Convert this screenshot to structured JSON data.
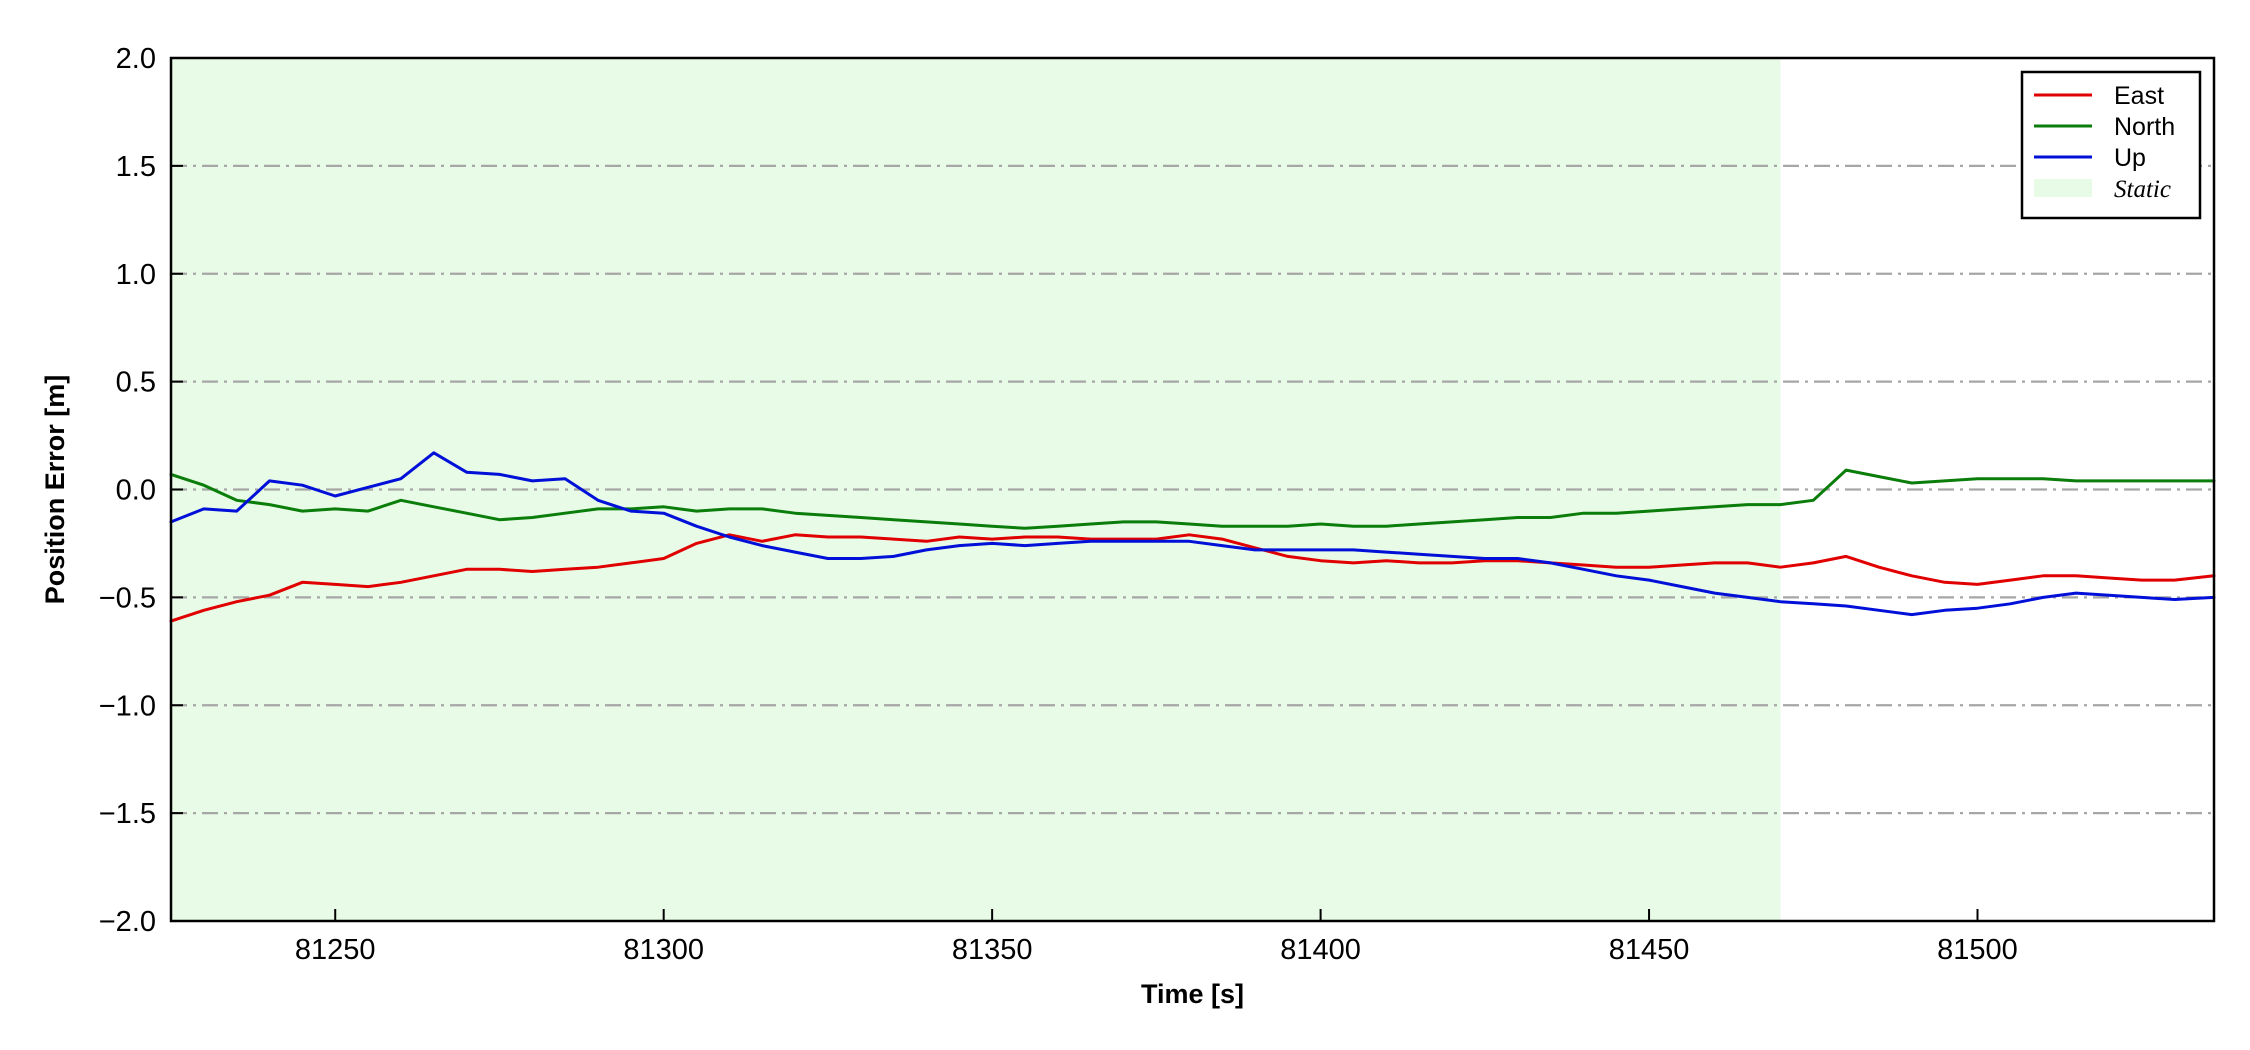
{
  "chart_data": {
    "type": "line",
    "title": "",
    "xlabel": "Time [s]",
    "ylabel": "Position Error [m]",
    "xlim": [
      81225,
      81536
    ],
    "ylim": [
      -2.0,
      2.0
    ],
    "x_ticks": [
      81250,
      81300,
      81350,
      81400,
      81450,
      81500
    ],
    "x_tick_labels": [
      "81250",
      "81300",
      "81350",
      "81400",
      "81450",
      "81500"
    ],
    "y_ticks": [
      -2.0,
      -1.5,
      -1.0,
      -0.5,
      0.0,
      0.5,
      1.0,
      1.5,
      2.0
    ],
    "y_tick_labels": [
      "−2.0",
      "−1.5",
      "−1.0",
      "−0.5",
      "0.0",
      "0.5",
      "1.0",
      "1.5",
      "2.0"
    ],
    "grid": "horizontal dash-dot",
    "legend_position": "top-right",
    "static_region": {
      "label": "Static",
      "x_start": 81225,
      "x_end": 81470,
      "color": "#e8fbe6"
    },
    "x": [
      81225,
      81230,
      81235,
      81240,
      81245,
      81250,
      81255,
      81260,
      81265,
      81270,
      81275,
      81280,
      81285,
      81290,
      81295,
      81300,
      81305,
      81310,
      81315,
      81320,
      81325,
      81330,
      81335,
      81340,
      81345,
      81350,
      81355,
      81360,
      81365,
      81370,
      81375,
      81380,
      81385,
      81390,
      81395,
      81400,
      81405,
      81410,
      81415,
      81420,
      81425,
      81430,
      81435,
      81440,
      81445,
      81450,
      81455,
      81460,
      81465,
      81470,
      81475,
      81480,
      81485,
      81490,
      81495,
      81500,
      81505,
      81510,
      81515,
      81520,
      81525,
      81530,
      81536
    ],
    "series": [
      {
        "name": "East",
        "color": "#e00000",
        "values": [
          -0.61,
          -0.56,
          -0.52,
          -0.49,
          -0.43,
          -0.44,
          -0.45,
          -0.43,
          -0.4,
          -0.37,
          -0.37,
          -0.38,
          -0.37,
          -0.36,
          -0.34,
          -0.32,
          -0.25,
          -0.21,
          -0.24,
          -0.21,
          -0.22,
          -0.22,
          -0.23,
          -0.24,
          -0.22,
          -0.23,
          -0.22,
          -0.22,
          -0.23,
          -0.23,
          -0.23,
          -0.21,
          -0.23,
          -0.27,
          -0.31,
          -0.33,
          -0.34,
          -0.33,
          -0.34,
          -0.34,
          -0.33,
          -0.33,
          -0.34,
          -0.35,
          -0.36,
          -0.36,
          -0.35,
          -0.34,
          -0.34,
          -0.36,
          -0.34,
          -0.31,
          -0.36,
          -0.4,
          -0.43,
          -0.44,
          -0.42,
          -0.4,
          -0.4,
          -0.41,
          -0.42,
          -0.42,
          -0.4
        ]
      },
      {
        "name": "North",
        "color": "#0a7d0a",
        "values": [
          0.07,
          0.02,
          -0.05,
          -0.07,
          -0.1,
          -0.09,
          -0.1,
          -0.05,
          -0.08,
          -0.11,
          -0.14,
          -0.13,
          -0.11,
          -0.09,
          -0.09,
          -0.08,
          -0.1,
          -0.09,
          -0.09,
          -0.11,
          -0.12,
          -0.13,
          -0.14,
          -0.15,
          -0.16,
          -0.17,
          -0.18,
          -0.17,
          -0.16,
          -0.15,
          -0.15,
          -0.16,
          -0.17,
          -0.17,
          -0.17,
          -0.16,
          -0.17,
          -0.17,
          -0.16,
          -0.15,
          -0.14,
          -0.13,
          -0.13,
          -0.11,
          -0.11,
          -0.1,
          -0.09,
          -0.08,
          -0.07,
          -0.07,
          -0.05,
          0.09,
          0.06,
          0.03,
          0.04,
          0.05,
          0.05,
          0.05,
          0.04,
          0.04,
          0.04,
          0.04,
          0.04
        ]
      },
      {
        "name": "Up",
        "color": "#0010d8",
        "values": [
          -0.15,
          -0.09,
          -0.1,
          0.04,
          0.02,
          -0.03,
          0.01,
          0.05,
          0.17,
          0.08,
          0.07,
          0.04,
          0.05,
          -0.05,
          -0.1,
          -0.11,
          -0.17,
          -0.22,
          -0.26,
          -0.29,
          -0.32,
          -0.32,
          -0.31,
          -0.28,
          -0.26,
          -0.25,
          -0.26,
          -0.25,
          -0.24,
          -0.24,
          -0.24,
          -0.24,
          -0.26,
          -0.28,
          -0.28,
          -0.28,
          -0.28,
          -0.29,
          -0.3,
          -0.31,
          -0.32,
          -0.32,
          -0.34,
          -0.37,
          -0.4,
          -0.42,
          -0.45,
          -0.48,
          -0.5,
          -0.52,
          -0.53,
          -0.54,
          -0.56,
          -0.58,
          -0.56,
          -0.55,
          -0.53,
          -0.5,
          -0.48,
          -0.49,
          -0.5,
          -0.51,
          -0.5
        ]
      }
    ]
  }
}
